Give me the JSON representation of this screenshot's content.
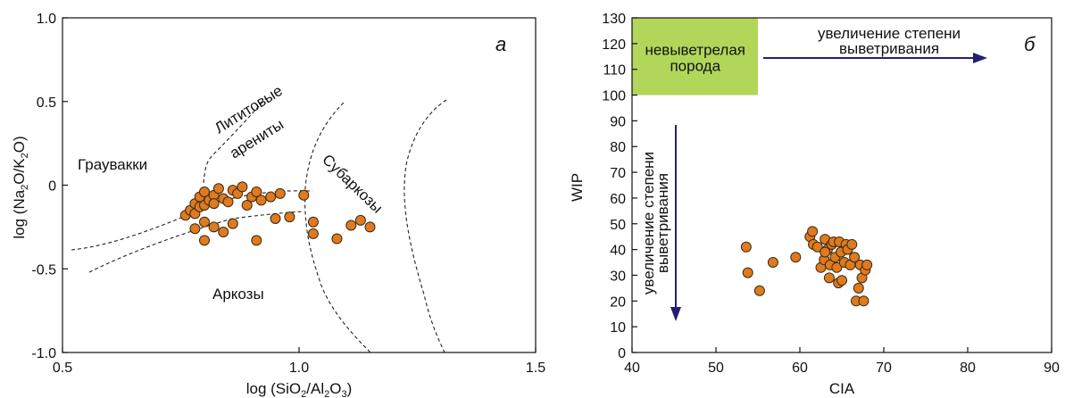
{
  "chart_data": [
    {
      "type": "scatter",
      "panel_label": "а",
      "xlabel": "log (SiO2/Al2O3)",
      "ylabel": "log (Na2O/K2O)",
      "xlim": [
        0.5,
        1.5
      ],
      "ylim": [
        -1.0,
        1.0
      ],
      "x_ticks": [
        "0.5",
        "1.0",
        "1.5"
      ],
      "y_ticks": [
        "1.0",
        "0.5",
        "0",
        "-0.5",
        "-1.0"
      ],
      "fields": [
        "Граувакки",
        "Лититовые",
        "арениты",
        "Субаркозы",
        "Аркозы"
      ],
      "colors": {
        "point": "#e07a1f"
      },
      "points": [
        [
          0.76,
          -0.18
        ],
        [
          0.77,
          -0.15
        ],
        [
          0.78,
          -0.11
        ],
        [
          0.78,
          -0.17
        ],
        [
          0.79,
          -0.13
        ],
        [
          0.79,
          -0.07
        ],
        [
          0.8,
          -0.04
        ],
        [
          0.8,
          -0.12
        ],
        [
          0.81,
          -0.09
        ],
        [
          0.82,
          -0.06
        ],
        [
          0.82,
          -0.11
        ],
        [
          0.83,
          -0.02
        ],
        [
          0.84,
          -0.08
        ],
        [
          0.85,
          -0.1
        ],
        [
          0.86,
          -0.03
        ],
        [
          0.87,
          -0.05
        ],
        [
          0.88,
          -0.01
        ],
        [
          0.89,
          -0.12
        ],
        [
          0.9,
          -0.07
        ],
        [
          0.91,
          -0.04
        ],
        [
          0.92,
          -0.09
        ],
        [
          0.94,
          -0.07
        ],
        [
          0.96,
          -0.05
        ],
        [
          1.01,
          -0.06
        ],
        [
          0.78,
          -0.26
        ],
        [
          0.8,
          -0.22
        ],
        [
          0.82,
          -0.25
        ],
        [
          0.84,
          -0.28
        ],
        [
          0.86,
          -0.23
        ],
        [
          0.91,
          -0.33
        ],
        [
          0.95,
          -0.2
        ],
        [
          0.98,
          -0.19
        ],
        [
          1.03,
          -0.22
        ],
        [
          1.03,
          -0.29
        ],
        [
          1.08,
          -0.32
        ],
        [
          1.11,
          -0.24
        ],
        [
          1.13,
          -0.21
        ],
        [
          1.15,
          -0.25
        ],
        [
          0.8,
          -0.33
        ]
      ]
    },
    {
      "type": "scatter",
      "panel_label": "б",
      "xlabel": "CIA",
      "ylabel": "WIP",
      "xlim": [
        40,
        90
      ],
      "ylim": [
        0,
        130
      ],
      "x_ticks": [
        "40",
        "50",
        "60",
        "70",
        "80",
        "90"
      ],
      "y_ticks": [
        "0",
        "10",
        "20",
        "30",
        "40",
        "50",
        "60",
        "70",
        "80",
        "90",
        "100",
        "110",
        "120",
        "130"
      ],
      "box": {
        "label_lines": [
          "невыветрелая",
          "порода"
        ],
        "x": [
          40,
          55
        ],
        "y": [
          100,
          130
        ],
        "color": "#b2d65a"
      },
      "arrow_h": {
        "label_lines": [
          "увеличение степени",
          "выветривания"
        ],
        "color": "#22206e"
      },
      "arrow_v": {
        "label_lines": [
          "увеличение степени",
          "выветривания"
        ],
        "color": "#22206e"
      },
      "colors": {
        "point": "#e07a1f"
      },
      "points": [
        [
          53.6,
          41
        ],
        [
          53.8,
          31
        ],
        [
          55.2,
          24
        ],
        [
          56.8,
          35
        ],
        [
          59.5,
          37
        ],
        [
          61.2,
          45
        ],
        [
          61.5,
          47
        ],
        [
          61.6,
          42
        ],
        [
          62.1,
          41
        ],
        [
          62.5,
          33
        ],
        [
          62.9,
          36
        ],
        [
          63.0,
          44
        ],
        [
          63.3,
          40
        ],
        [
          63.5,
          29
        ],
        [
          63.6,
          34
        ],
        [
          63.8,
          42
        ],
        [
          64.0,
          43
        ],
        [
          64.2,
          37
        ],
        [
          64.4,
          33
        ],
        [
          64.6,
          27
        ],
        [
          64.7,
          43
        ],
        [
          64.9,
          39
        ],
        [
          65.0,
          28
        ],
        [
          65.3,
          35
        ],
        [
          65.5,
          42
        ],
        [
          65.7,
          40
        ],
        [
          66.0,
          34
        ],
        [
          66.2,
          42
        ],
        [
          66.5,
          37
        ],
        [
          66.7,
          20
        ],
        [
          67.0,
          25
        ],
        [
          67.2,
          34
        ],
        [
          67.4,
          29
        ],
        [
          67.6,
          20
        ],
        [
          67.8,
          32
        ],
        [
          68.0,
          34
        ],
        [
          63.0,
          39
        ]
      ]
    }
  ]
}
